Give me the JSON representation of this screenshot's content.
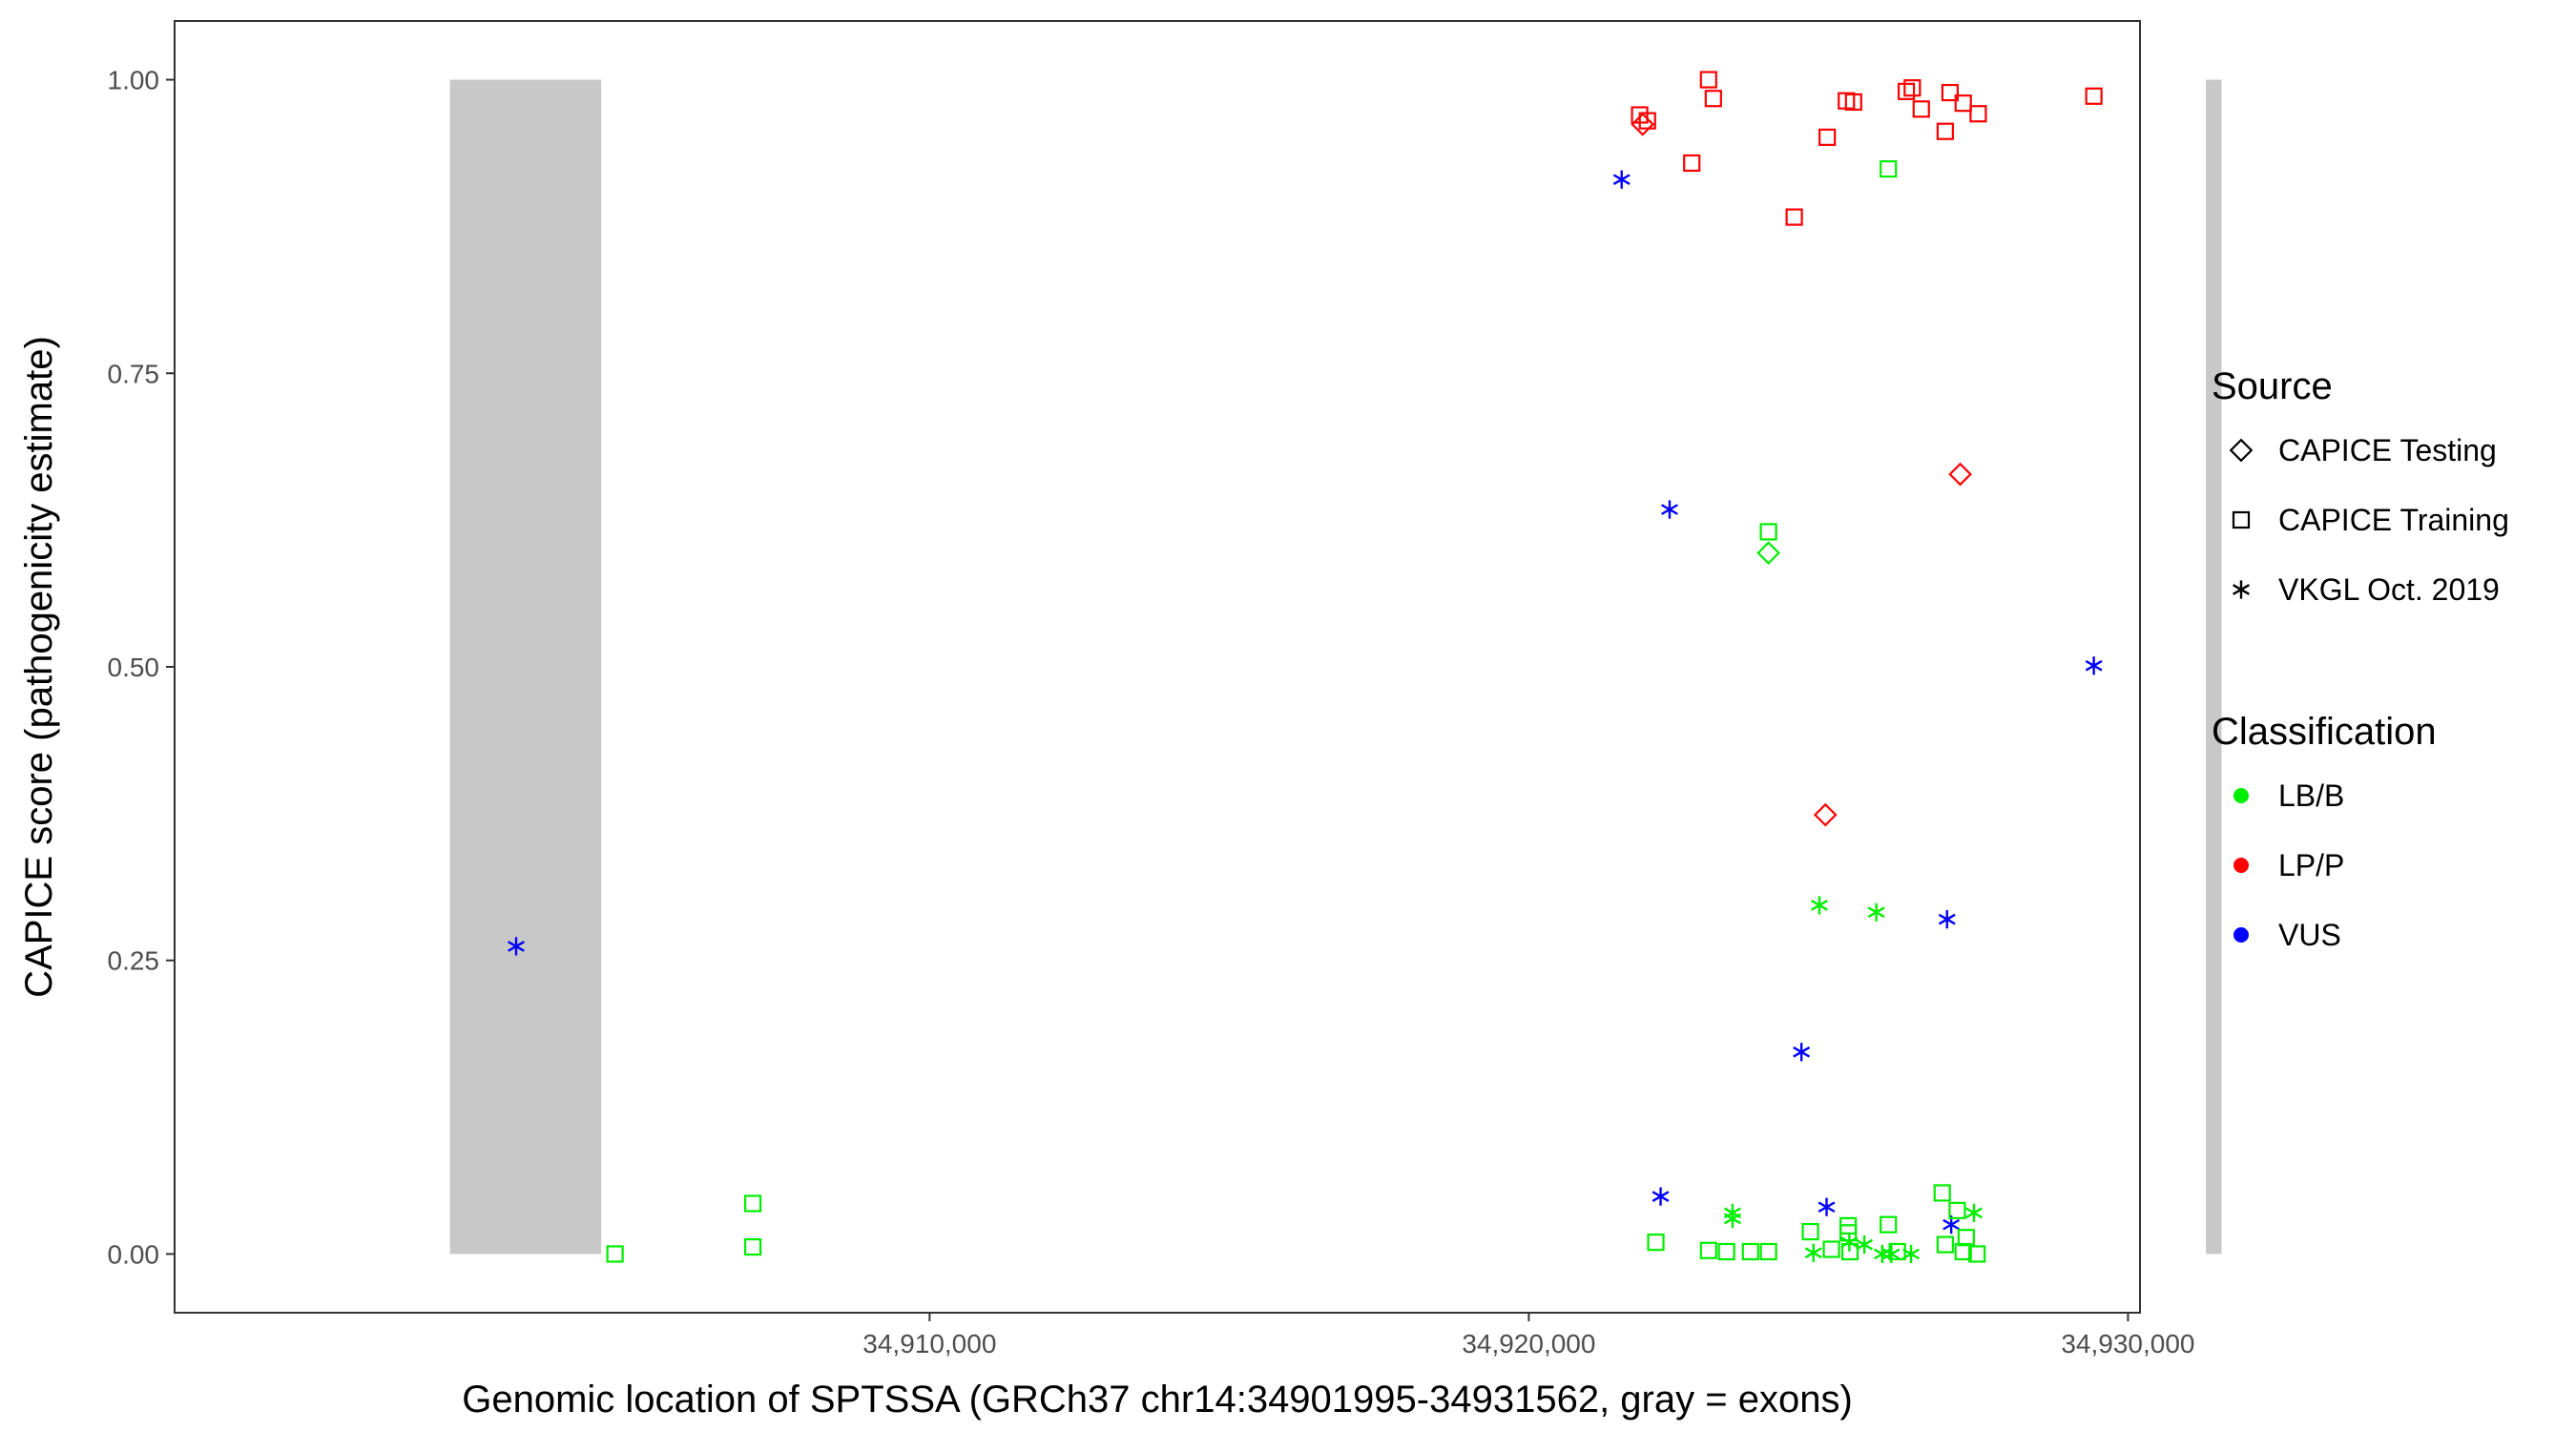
{
  "chart_data": {
    "type": "scatter",
    "title": "",
    "xlabel": "Genomic location of SPTSSA (GRCh37 chr14:34901995-34931562, gray = exons)",
    "ylabel": "CAPICE score (pathogenicity estimate)",
    "xlim": [
      34897400,
      34930200
    ],
    "ylim": [
      -0.05,
      1.05
    ],
    "x_ticks": [
      {
        "value": 34910000,
        "label": "34,910,000"
      },
      {
        "value": 34920000,
        "label": "34,920,000"
      },
      {
        "value": 34930000,
        "label": "34,930,000"
      }
    ],
    "y_ticks": [
      {
        "value": 0.0,
        "label": "0.00"
      },
      {
        "value": 0.25,
        "label": "0.25"
      },
      {
        "value": 0.5,
        "label": "0.50"
      },
      {
        "value": 0.75,
        "label": "0.75"
      },
      {
        "value": 1.0,
        "label": "1.00"
      }
    ],
    "grid": false,
    "panel_border": true,
    "exons": [
      {
        "start": 34901995,
        "end": 34904520,
        "color": "#c8c8c8"
      },
      {
        "start": 34931300,
        "end": 34931562,
        "color": "#c8c8c8"
      }
    ],
    "classification_colors": {
      "LB/B": "#00ee00",
      "LP/P": "#ff0000",
      "VUS": "#0000ff"
    },
    "points": [
      {
        "x": 34903100,
        "y": 0.262,
        "source": "VKGL Oct. 2019",
        "class": "VUS"
      },
      {
        "x": 34904750,
        "y": 0.0,
        "source": "CAPICE Training",
        "class": "LB/B"
      },
      {
        "x": 34907050,
        "y": 0.043,
        "source": "CAPICE Training",
        "class": "LB/B"
      },
      {
        "x": 34907050,
        "y": 0.006,
        "source": "CAPICE Training",
        "class": "LB/B"
      },
      {
        "x": 34921550,
        "y": 0.915,
        "source": "VKGL Oct. 2019",
        "class": "VUS"
      },
      {
        "x": 34921850,
        "y": 0.97,
        "source": "CAPICE Training",
        "class": "LP/P"
      },
      {
        "x": 34921900,
        "y": 0.962,
        "source": "CAPICE Testing",
        "class": "LP/P"
      },
      {
        "x": 34921980,
        "y": 0.965,
        "source": "CAPICE Training",
        "class": "LP/P"
      },
      {
        "x": 34922720,
        "y": 0.929,
        "source": "CAPICE Training",
        "class": "LP/P"
      },
      {
        "x": 34923000,
        "y": 1.0,
        "source": "CAPICE Training",
        "class": "LP/P"
      },
      {
        "x": 34923080,
        "y": 0.984,
        "source": "CAPICE Training",
        "class": "LP/P"
      },
      {
        "x": 34924430,
        "y": 0.883,
        "source": "CAPICE Training",
        "class": "LP/P"
      },
      {
        "x": 34924980,
        "y": 0.951,
        "source": "CAPICE Training",
        "class": "LP/P"
      },
      {
        "x": 34925300,
        "y": 0.982,
        "source": "CAPICE Training",
        "class": "LP/P"
      },
      {
        "x": 34925420,
        "y": 0.981,
        "source": "CAPICE Training",
        "class": "LP/P"
      },
      {
        "x": 34926000,
        "y": 0.924,
        "source": "CAPICE Training",
        "class": "LB/B"
      },
      {
        "x": 34926300,
        "y": 0.99,
        "source": "CAPICE Training",
        "class": "LP/P"
      },
      {
        "x": 34926400,
        "y": 0.993,
        "source": "CAPICE Training",
        "class": "LP/P"
      },
      {
        "x": 34926550,
        "y": 0.975,
        "source": "CAPICE Training",
        "class": "LP/P"
      },
      {
        "x": 34926950,
        "y": 0.956,
        "source": "CAPICE Training",
        "class": "LP/P"
      },
      {
        "x": 34927030,
        "y": 0.989,
        "source": "CAPICE Training",
        "class": "LP/P"
      },
      {
        "x": 34927250,
        "y": 0.98,
        "source": "CAPICE Training",
        "class": "LP/P"
      },
      {
        "x": 34927500,
        "y": 0.971,
        "source": "CAPICE Training",
        "class": "LP/P"
      },
      {
        "x": 34929430,
        "y": 0.986,
        "source": "CAPICE Training",
        "class": "LP/P"
      },
      {
        "x": 34927200,
        "y": 0.664,
        "source": "CAPICE Testing",
        "class": "LP/P"
      },
      {
        "x": 34922350,
        "y": 0.634,
        "source": "VKGL Oct. 2019",
        "class": "VUS"
      },
      {
        "x": 34924000,
        "y": 0.615,
        "source": "CAPICE Training",
        "class": "LB/B"
      },
      {
        "x": 34924000,
        "y": 0.597,
        "source": "CAPICE Testing",
        "class": "LB/B"
      },
      {
        "x": 34929430,
        "y": 0.501,
        "source": "VKGL Oct. 2019",
        "class": "VUS"
      },
      {
        "x": 34924950,
        "y": 0.374,
        "source": "CAPICE Testing",
        "class": "LP/P"
      },
      {
        "x": 34924850,
        "y": 0.297,
        "source": "VKGL Oct. 2019",
        "class": "LB/B"
      },
      {
        "x": 34925800,
        "y": 0.291,
        "source": "VKGL Oct. 2019",
        "class": "LB/B"
      },
      {
        "x": 34926980,
        "y": 0.285,
        "source": "VKGL Oct. 2019",
        "class": "VUS"
      },
      {
        "x": 34924550,
        "y": 0.172,
        "source": "VKGL Oct. 2019",
        "class": "VUS"
      },
      {
        "x": 34922200,
        "y": 0.049,
        "source": "VKGL Oct. 2019",
        "class": "VUS"
      },
      {
        "x": 34924970,
        "y": 0.04,
        "source": "VKGL Oct. 2019",
        "class": "VUS"
      },
      {
        "x": 34927050,
        "y": 0.025,
        "source": "VKGL Oct. 2019",
        "class": "VUS"
      },
      {
        "x": 34922120,
        "y": 0.01,
        "source": "CAPICE Training",
        "class": "LB/B"
      },
      {
        "x": 34923000,
        "y": 0.003,
        "source": "CAPICE Training",
        "class": "LB/B"
      },
      {
        "x": 34923300,
        "y": 0.002,
        "source": "CAPICE Training",
        "class": "LB/B"
      },
      {
        "x": 34923400,
        "y": 0.035,
        "source": "VKGL Oct. 2019",
        "class": "LB/B"
      },
      {
        "x": 34923400,
        "y": 0.03,
        "source": "VKGL Oct. 2019",
        "class": "LB/B"
      },
      {
        "x": 34923700,
        "y": 0.002,
        "source": "CAPICE Training",
        "class": "LB/B"
      },
      {
        "x": 34924000,
        "y": 0.002,
        "source": "CAPICE Training",
        "class": "LB/B"
      },
      {
        "x": 34924700,
        "y": 0.019,
        "source": "CAPICE Training",
        "class": "LB/B"
      },
      {
        "x": 34924750,
        "y": 0.001,
        "source": "VKGL Oct. 2019",
        "class": "LB/B"
      },
      {
        "x": 34925050,
        "y": 0.004,
        "source": "CAPICE Training",
        "class": "LB/B"
      },
      {
        "x": 34925330,
        "y": 0.024,
        "source": "CAPICE Training",
        "class": "LB/B"
      },
      {
        "x": 34925330,
        "y": 0.018,
        "source": "CAPICE Training",
        "class": "LB/B"
      },
      {
        "x": 34925350,
        "y": 0.01,
        "source": "VKGL Oct. 2019",
        "class": "LB/B"
      },
      {
        "x": 34925360,
        "y": 0.002,
        "source": "CAPICE Training",
        "class": "LB/B"
      },
      {
        "x": 34925600,
        "y": 0.008,
        "source": "VKGL Oct. 2019",
        "class": "LB/B"
      },
      {
        "x": 34925900,
        "y": 0.0,
        "source": "VKGL Oct. 2019",
        "class": "LB/B"
      },
      {
        "x": 34926000,
        "y": 0.025,
        "source": "CAPICE Training",
        "class": "LB/B"
      },
      {
        "x": 34926050,
        "y": 0.0,
        "source": "VKGL Oct. 2019",
        "class": "LB/B"
      },
      {
        "x": 34926150,
        "y": 0.002,
        "source": "CAPICE Training",
        "class": "LB/B"
      },
      {
        "x": 34926380,
        "y": 0.0,
        "source": "VKGL Oct. 2019",
        "class": "LB/B"
      },
      {
        "x": 34926900,
        "y": 0.052,
        "source": "CAPICE Training",
        "class": "LB/B"
      },
      {
        "x": 34926950,
        "y": 0.008,
        "source": "CAPICE Training",
        "class": "LB/B"
      },
      {
        "x": 34927150,
        "y": 0.037,
        "source": "CAPICE Training",
        "class": "LB/B"
      },
      {
        "x": 34927250,
        "y": 0.002,
        "source": "CAPICE Training",
        "class": "LB/B"
      },
      {
        "x": 34927300,
        "y": 0.014,
        "source": "CAPICE Training",
        "class": "LB/B"
      },
      {
        "x": 34927430,
        "y": 0.035,
        "source": "VKGL Oct. 2019",
        "class": "LB/B"
      },
      {
        "x": 34927480,
        "y": 0.0,
        "source": "CAPICE Training",
        "class": "LB/B"
      }
    ]
  },
  "legend": {
    "source": {
      "title": "Source",
      "items": [
        {
          "label": "CAPICE Testing",
          "shape": "diamond"
        },
        {
          "label": "CAPICE Training",
          "shape": "square"
        },
        {
          "label": "VKGL Oct. 2019",
          "shape": "asterisk"
        }
      ]
    },
    "classification": {
      "title": "Classification",
      "items": [
        {
          "label": "LB/B",
          "color": "#00ee00"
        },
        {
          "label": "LP/P",
          "color": "#ff0000"
        },
        {
          "label": "VUS",
          "color": "#0000ff"
        }
      ]
    }
  }
}
